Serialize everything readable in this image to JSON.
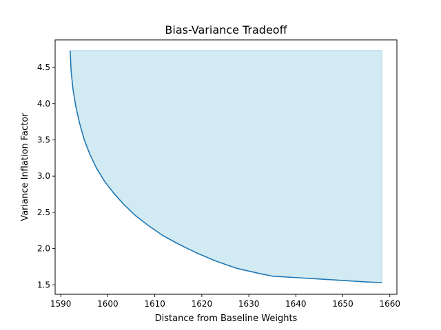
{
  "chart_data": {
    "type": "line",
    "title": "Bias-Variance Tradeoff",
    "xlabel": "Distance from Baseline Weights",
    "ylabel": "Variance Inflation Factor",
    "xlim": [
      1588.8,
      1661.5
    ],
    "ylim": [
      1.37,
      4.88
    ],
    "xticks": [
      1590,
      1600,
      1610,
      1620,
      1630,
      1640,
      1650,
      1660
    ],
    "yticks": [
      1.5,
      2.0,
      2.5,
      3.0,
      3.5,
      4.0,
      4.5
    ],
    "ytick_labels": [
      "1.5",
      "2.0",
      "2.5",
      "3.0",
      "3.5",
      "4.0",
      "4.5"
    ],
    "grid": false,
    "series": [
      {
        "x": [
          1592.0,
          1592.2,
          1592.6,
          1593.2,
          1594.0,
          1595.0,
          1596.2,
          1597.6,
          1599.3,
          1601.2,
          1603.4,
          1605.8,
          1608.6,
          1611.7,
          1615.1,
          1618.9,
          1622.9,
          1627.3,
          1632.0,
          1635.0,
          1640.0,
          1645.0,
          1650.0,
          1655.0,
          1658.3
        ],
        "y": [
          4.73,
          4.45,
          4.2,
          3.96,
          3.73,
          3.5,
          3.3,
          3.11,
          2.93,
          2.77,
          2.61,
          2.46,
          2.32,
          2.18,
          2.06,
          1.94,
          1.83,
          1.73,
          1.66,
          1.62,
          1.6,
          1.58,
          1.56,
          1.54,
          1.53
        ]
      }
    ],
    "fill": {
      "to": "top",
      "ymax": 4.73
    },
    "colors": {
      "line": "#1f77b4",
      "fill": "#add8e6"
    }
  }
}
